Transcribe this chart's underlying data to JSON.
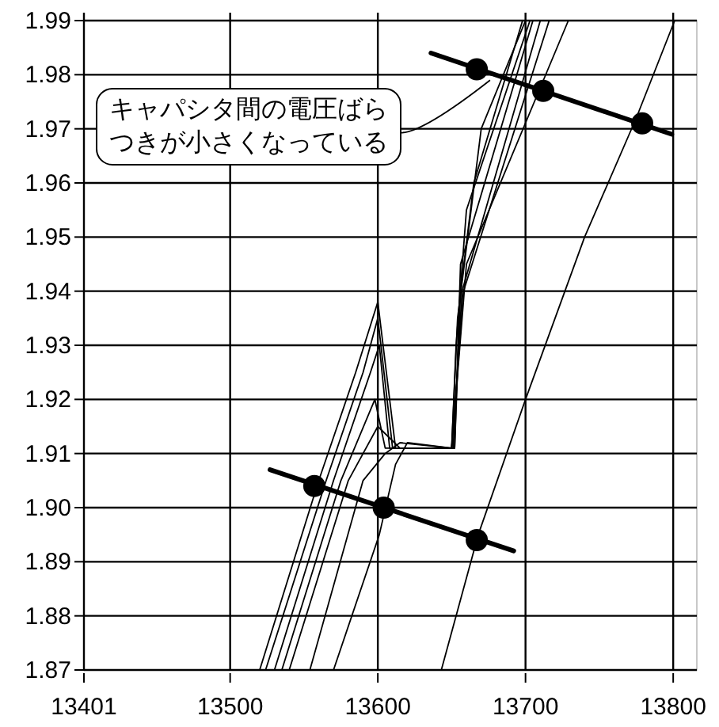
{
  "chart_data": {
    "type": "line",
    "xlim": [
      13401,
      13816
    ],
    "ylim": [
      1.87,
      1.99
    ],
    "xticks": [
      13401,
      13500,
      13600,
      13700,
      13800
    ],
    "yticks": [
      {
        "value": 1.87,
        "label": "1.87"
      },
      {
        "value": 1.88,
        "label": "1.88"
      },
      {
        "value": 1.89,
        "label": "1.89"
      },
      {
        "value": 1.9,
        "label": "1.90"
      },
      {
        "value": 1.91,
        "label": "1.91"
      },
      {
        "value": 1.92,
        "label": "1.92"
      },
      {
        "value": 1.93,
        "label": "1.93"
      },
      {
        "value": 1.94,
        "label": "1.94"
      },
      {
        "value": 1.95,
        "label": "1.95"
      },
      {
        "value": 1.96,
        "label": "1.96"
      },
      {
        "value": 1.97,
        "label": "1.97"
      },
      {
        "value": 1.98,
        "label": "1.98"
      },
      {
        "value": 1.99,
        "label": "1.99"
      }
    ],
    "grid": true,
    "line_style": "solid",
    "series": [
      {
        "color": "#000000",
        "x": [
          13520,
          13560,
          13585,
          13600,
          13612,
          13652,
          13656,
          13665,
          13698
        ],
        "values": [
          1.87,
          1.905,
          1.925,
          1.938,
          1.911,
          1.911,
          1.94,
          1.96,
          1.99
        ]
      },
      {
        "color": "#000000",
        "x": [
          13524,
          13565,
          13590,
          13600,
          13610,
          13650,
          13654,
          13670,
          13700
        ],
        "values": [
          1.87,
          1.905,
          1.925,
          1.935,
          1.911,
          1.911,
          1.935,
          1.97,
          1.99
        ]
      },
      {
        "color": "#000000",
        "x": [
          13530,
          13570,
          13595,
          13601,
          13608,
          13650,
          13653,
          13660,
          13703
        ],
        "values": [
          1.87,
          1.905,
          1.925,
          1.93,
          1.911,
          1.911,
          1.93,
          1.955,
          1.99
        ]
      },
      {
        "color": "#000000",
        "x": [
          13535,
          13575,
          13598,
          13605,
          13652,
          13656,
          13705
        ],
        "values": [
          1.87,
          1.905,
          1.92,
          1.911,
          1.911,
          1.945,
          1.99
        ]
      },
      {
        "color": "#000000",
        "x": [
          13540,
          13580,
          13600,
          13615,
          13651,
          13657,
          13710
        ],
        "values": [
          1.87,
          1.905,
          1.915,
          1.911,
          1.911,
          1.94,
          1.99
        ]
      },
      {
        "color": "#000000",
        "x": [
          13554,
          13590,
          13605,
          13615,
          13650,
          13658,
          13716
        ],
        "values": [
          1.87,
          1.905,
          1.91,
          1.912,
          1.911,
          1.94,
          1.99
        ]
      },
      {
        "color": "#000000",
        "x": [
          13570,
          13601,
          13612,
          13620,
          13650,
          13660,
          13729
        ],
        "values": [
          1.87,
          1.895,
          1.908,
          1.912,
          1.911,
          1.945,
          1.99
        ]
      },
      {
        "color": "#000000",
        "x": [
          13643,
          13668,
          13700,
          13740,
          13775,
          13801
        ],
        "values": [
          1.87,
          1.895,
          1.92,
          1.95,
          1.972,
          1.99
        ]
      },
      {
        "color": "#000000",
        "x": [
          13527,
          13692
        ],
        "values": [
          1.907,
          1.892
        ]
      },
      {
        "color": "#000000",
        "x": [
          13636,
          13799
        ],
        "values": [
          1.984,
          1.969
        ]
      },
      {
        "type": "scatter",
        "marker": "circle",
        "color": "#000000",
        "x": [
          13557,
          13604,
          13667
        ],
        "values": [
          1.904,
          1.9,
          1.894
        ]
      },
      {
        "type": "scatter",
        "marker": "circle",
        "color": "#000000",
        "x": [
          13667,
          13712,
          13779
        ],
        "values": [
          1.981,
          1.977,
          1.971
        ]
      }
    ],
    "annotations": [
      {
        "text": "キャパシタ間の電圧ばらつきが小さくなっている",
        "x": 13676,
        "y": 1.979
      }
    ]
  }
}
